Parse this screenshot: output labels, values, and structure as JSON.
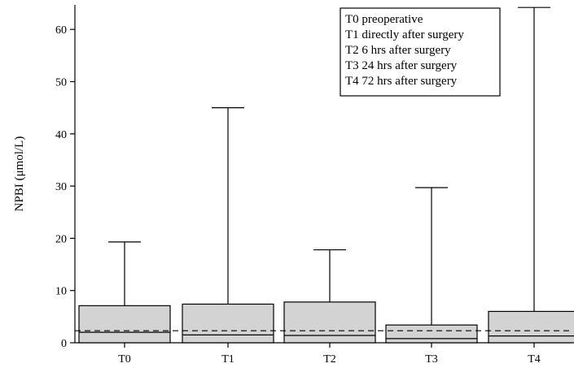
{
  "chart_data": {
    "type": "box",
    "ylabel": "NPBI (μmol/L)",
    "xlabel": "",
    "ylim": [
      0,
      65
    ],
    "yticks": [
      0,
      10,
      20,
      30,
      40,
      50,
      60
    ],
    "categories": [
      "T0",
      "T1",
      "T2",
      "T3",
      "T4"
    ],
    "boxes": [
      {
        "category": "T0",
        "min": 0,
        "q1": 0,
        "median": 2.0,
        "q3": 7.1,
        "max": 19.3
      },
      {
        "category": "T1",
        "min": 0,
        "q1": 0,
        "median": 1.5,
        "q3": 7.4,
        "max": 45.0
      },
      {
        "category": "T2",
        "min": 0,
        "q1": 0,
        "median": 1.4,
        "q3": 7.8,
        "max": 17.8
      },
      {
        "category": "T3",
        "min": 0,
        "q1": 0,
        "median": 0.8,
        "q3": 3.4,
        "max": 29.7
      },
      {
        "category": "T4",
        "min": 0,
        "q1": 0,
        "median": 1.3,
        "q3": 6.0,
        "max": 64.2
      }
    ],
    "reference_line": {
      "y": 2.3,
      "style": "dashed"
    },
    "box_fill": "#d3d3d3",
    "legend": {
      "placement": "top-right",
      "entries": [
        "T0 preoperative",
        "T1 directly after surgery",
        "T2 6 hrs after surgery",
        "T3 24 hrs after surgery",
        "T4 72 hrs after surgery"
      ]
    },
    "grid": false
  }
}
